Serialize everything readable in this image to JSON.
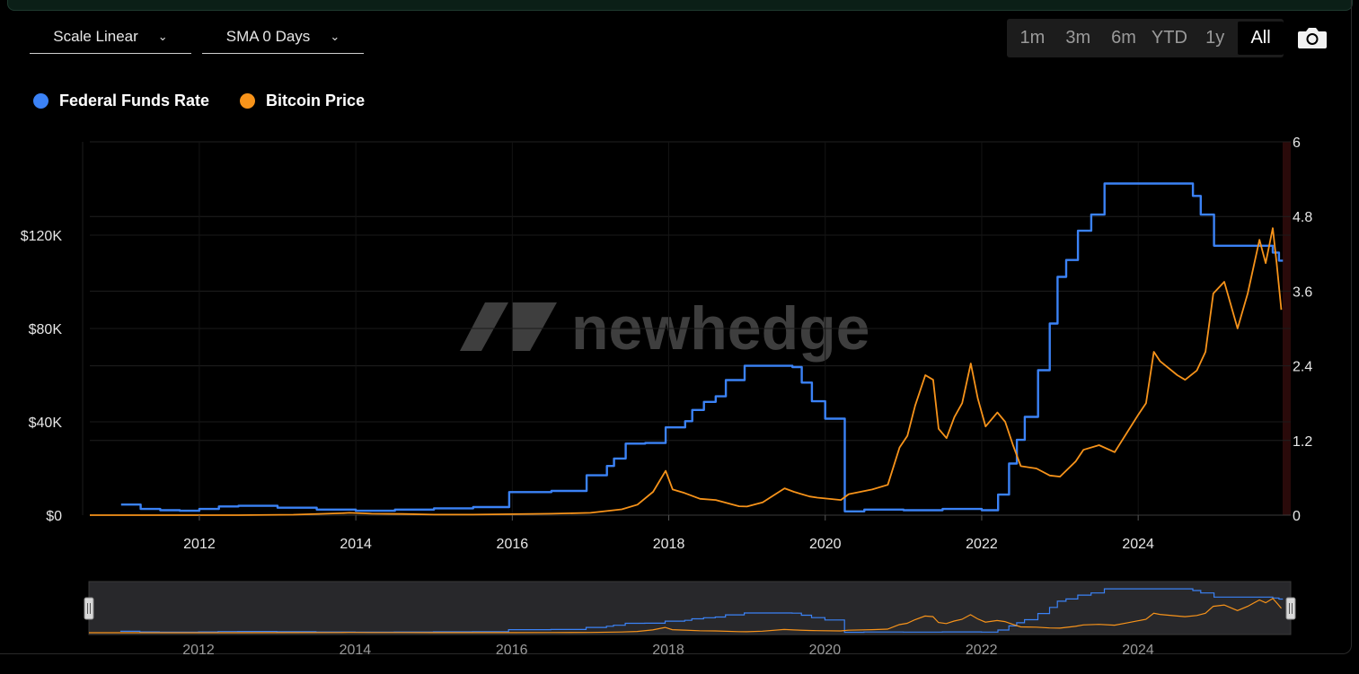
{
  "controls": {
    "scale_label": "Scale Linear",
    "sma_label": "SMA 0 Days",
    "ranges": [
      "1m",
      "3m",
      "6m",
      "YTD",
      "1y",
      "All"
    ],
    "active_range": "All"
  },
  "watermark": "newhedge",
  "colors": {
    "fed": "#3b82f6",
    "btc": "#f7931a",
    "bg": "#000000"
  },
  "chart_data": {
    "type": "line",
    "legend_position": "top-left",
    "xlim": [
      2010.6,
      2025.95
    ],
    "x_ticks": [
      2012,
      2014,
      2016,
      2018,
      2020,
      2022,
      2024
    ],
    "y_left": {
      "label": "Bitcoin Price",
      "lim": [
        0,
        160000
      ],
      "ticks": [
        0,
        40000,
        80000,
        120000
      ],
      "tick_labels": [
        "$0",
        "$40K",
        "$80K",
        "$120K"
      ]
    },
    "y_right": {
      "label": "Federal Funds Rate",
      "lim": [
        0,
        6
      ],
      "ticks": [
        0,
        1.2,
        2.4,
        3.6,
        4.8,
        6
      ],
      "tick_labels": [
        "0",
        "1.2",
        "2.4",
        "3.6",
        "4.8",
        "6"
      ]
    },
    "grid": true,
    "series": [
      {
        "name": "Federal Funds Rate",
        "axis": "right",
        "step": true,
        "x": [
          2011.0,
          2011.25,
          2011.5,
          2011.75,
          2012.0,
          2012.25,
          2012.5,
          2013.0,
          2013.5,
          2014.0,
          2014.5,
          2015.0,
          2015.5,
          2015.96,
          2016.25,
          2016.5,
          2016.95,
          2017.21,
          2017.3,
          2017.45,
          2017.7,
          2017.96,
          2018.21,
          2018.3,
          2018.45,
          2018.6,
          2018.73,
          2018.97,
          2019.2,
          2019.4,
          2019.58,
          2019.7,
          2019.83,
          2020.0,
          2020.17,
          2020.25,
          2020.5,
          2021.0,
          2021.5,
          2022.0,
          2022.21,
          2022.35,
          2022.45,
          2022.55,
          2022.72,
          2022.87,
          2022.97,
          2023.08,
          2023.23,
          2023.4,
          2023.57,
          2024.0,
          2024.5,
          2024.7,
          2024.8,
          2024.97,
          2025.5,
          2025.72,
          2025.8
        ],
        "y": [
          0.17,
          0.1,
          0.08,
          0.07,
          0.1,
          0.14,
          0.15,
          0.12,
          0.09,
          0.07,
          0.09,
          0.11,
          0.13,
          0.37,
          0.37,
          0.39,
          0.64,
          0.79,
          0.91,
          1.15,
          1.16,
          1.41,
          1.51,
          1.69,
          1.82,
          1.91,
          2.17,
          2.4,
          2.4,
          2.4,
          2.38,
          2.13,
          1.83,
          1.55,
          1.55,
          0.06,
          0.09,
          0.08,
          0.1,
          0.08,
          0.33,
          0.83,
          1.21,
          1.58,
          2.33,
          3.08,
          3.83,
          4.1,
          4.57,
          4.83,
          5.33,
          5.33,
          5.33,
          5.13,
          4.83,
          4.33,
          4.33,
          4.22,
          4.09
        ]
      },
      {
        "name": "Bitcoin Price",
        "axis": "left",
        "x": [
          2010.6,
          2011.5,
          2012.5,
          2013.2,
          2013.8,
          2013.92,
          2014.2,
          2014.6,
          2015.0,
          2015.5,
          2016.0,
          2016.5,
          2017.0,
          2017.4,
          2017.6,
          2017.8,
          2017.96,
          2018.05,
          2018.2,
          2018.4,
          2018.6,
          2018.9,
          2019.0,
          2019.2,
          2019.48,
          2019.6,
          2019.8,
          2019.9,
          2020.2,
          2020.3,
          2020.6,
          2020.8,
          2020.95,
          2021.05,
          2021.15,
          2021.28,
          2021.38,
          2021.45,
          2021.55,
          2021.65,
          2021.75,
          2021.86,
          2021.95,
          2022.05,
          2022.2,
          2022.3,
          2022.4,
          2022.5,
          2022.7,
          2022.87,
          2023.0,
          2023.2,
          2023.3,
          2023.5,
          2023.7,
          2023.85,
          2024.0,
          2024.1,
          2024.2,
          2024.28,
          2024.5,
          2024.6,
          2024.75,
          2024.86,
          2024.96,
          2025.1,
          2025.27,
          2025.4,
          2025.55,
          2025.63,
          2025.72,
          2025.77,
          2025.83
        ],
        "y": [
          0,
          10,
          10,
          200,
          800,
          1000,
          600,
          500,
          250,
          250,
          430,
          600,
          1000,
          2500,
          4500,
          10000,
          19000,
          11000,
          9500,
          7000,
          6500,
          3800,
          3700,
          5500,
          11500,
          10000,
          8000,
          7500,
          6500,
          9000,
          11000,
          13000,
          29000,
          34000,
          47000,
          60000,
          58000,
          37000,
          33000,
          42000,
          48000,
          65000,
          50000,
          38000,
          44000,
          40000,
          30000,
          21000,
          20000,
          17000,
          16500,
          23000,
          28000,
          30000,
          27000,
          35000,
          43000,
          48000,
          70000,
          66000,
          60000,
          58000,
          62000,
          70000,
          95000,
          100000,
          80000,
          95000,
          118000,
          108000,
          123000,
          108000,
          88000
        ]
      }
    ]
  }
}
